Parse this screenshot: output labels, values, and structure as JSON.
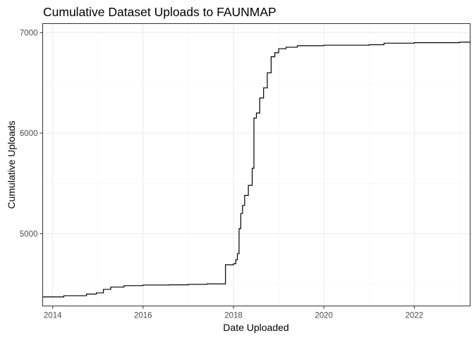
{
  "chart_data": {
    "type": "line",
    "subtype": "step",
    "title": "Cumulative Dataset Uploads to FAUNMAP",
    "xlabel": "Date Uploaded",
    "ylabel": "Cumulative Uploads",
    "x_type": "date",
    "xlim": [
      "2013-10-12",
      "2023-03-28"
    ],
    "ylim": [
      4280,
      7090
    ],
    "x_ticks": [
      {
        "value": "2014-01-01",
        "label": "2014"
      },
      {
        "value": "2016-01-01",
        "label": "2016"
      },
      {
        "value": "2018-01-01",
        "label": "2018"
      },
      {
        "value": "2020-01-01",
        "label": "2020"
      },
      {
        "value": "2022-01-01",
        "label": "2022"
      }
    ],
    "y_ticks": [
      {
        "value": 5000,
        "label": "5000"
      },
      {
        "value": 6000,
        "label": "6000"
      },
      {
        "value": 7000,
        "label": "7000"
      }
    ],
    "x_minor_ticks": [
      "2015-01-01",
      "2017-01-01",
      "2019-01-01",
      "2021-01-01",
      "2023-01-01"
    ],
    "y_minor_ticks": [
      4500,
      5500,
      6500
    ],
    "grid": true,
    "legend": "none",
    "series": [
      {
        "color": "#000000",
        "points": [
          {
            "x": "2013-10-12",
            "y": 4370
          },
          {
            "x": "2014-04-01",
            "y": 4382
          },
          {
            "x": "2014-10-01",
            "y": 4398
          },
          {
            "x": "2014-12-20",
            "y": 4410
          },
          {
            "x": "2015-02-15",
            "y": 4445
          },
          {
            "x": "2015-04-15",
            "y": 4468
          },
          {
            "x": "2015-08-01",
            "y": 4482
          },
          {
            "x": "2016-01-01",
            "y": 4488
          },
          {
            "x": "2016-08-01",
            "y": 4490
          },
          {
            "x": "2017-01-01",
            "y": 4495
          },
          {
            "x": "2017-06-01",
            "y": 4500
          },
          {
            "x": "2017-10-27",
            "y": 4505
          },
          {
            "x": "2017-10-28",
            "y": 4690
          },
          {
            "x": "2017-11-20",
            "y": 4690
          },
          {
            "x": "2018-01-01",
            "y": 4700
          },
          {
            "x": "2018-01-20",
            "y": 4740
          },
          {
            "x": "2018-02-01",
            "y": 4800
          },
          {
            "x": "2018-02-15",
            "y": 5050
          },
          {
            "x": "2018-03-01",
            "y": 5200
          },
          {
            "x": "2018-03-15",
            "y": 5280
          },
          {
            "x": "2018-04-01",
            "y": 5380
          },
          {
            "x": "2018-05-01",
            "y": 5480
          },
          {
            "x": "2018-06-01",
            "y": 5650
          },
          {
            "x": "2018-06-15",
            "y": 6150
          },
          {
            "x": "2018-07-05",
            "y": 6200
          },
          {
            "x": "2018-08-01",
            "y": 6350
          },
          {
            "x": "2018-09-01",
            "y": 6450
          },
          {
            "x": "2018-10-01",
            "y": 6600
          },
          {
            "x": "2018-11-01",
            "y": 6760
          },
          {
            "x": "2018-12-01",
            "y": 6800
          },
          {
            "x": "2019-01-01",
            "y": 6840
          },
          {
            "x": "2019-03-01",
            "y": 6855
          },
          {
            "x": "2019-06-01",
            "y": 6870
          },
          {
            "x": "2020-01-01",
            "y": 6875
          },
          {
            "x": "2021-01-01",
            "y": 6880
          },
          {
            "x": "2021-05-01",
            "y": 6895
          },
          {
            "x": "2022-01-01",
            "y": 6900
          },
          {
            "x": "2023-01-01",
            "y": 6905
          },
          {
            "x": "2023-03-28",
            "y": 6912
          }
        ]
      }
    ]
  }
}
